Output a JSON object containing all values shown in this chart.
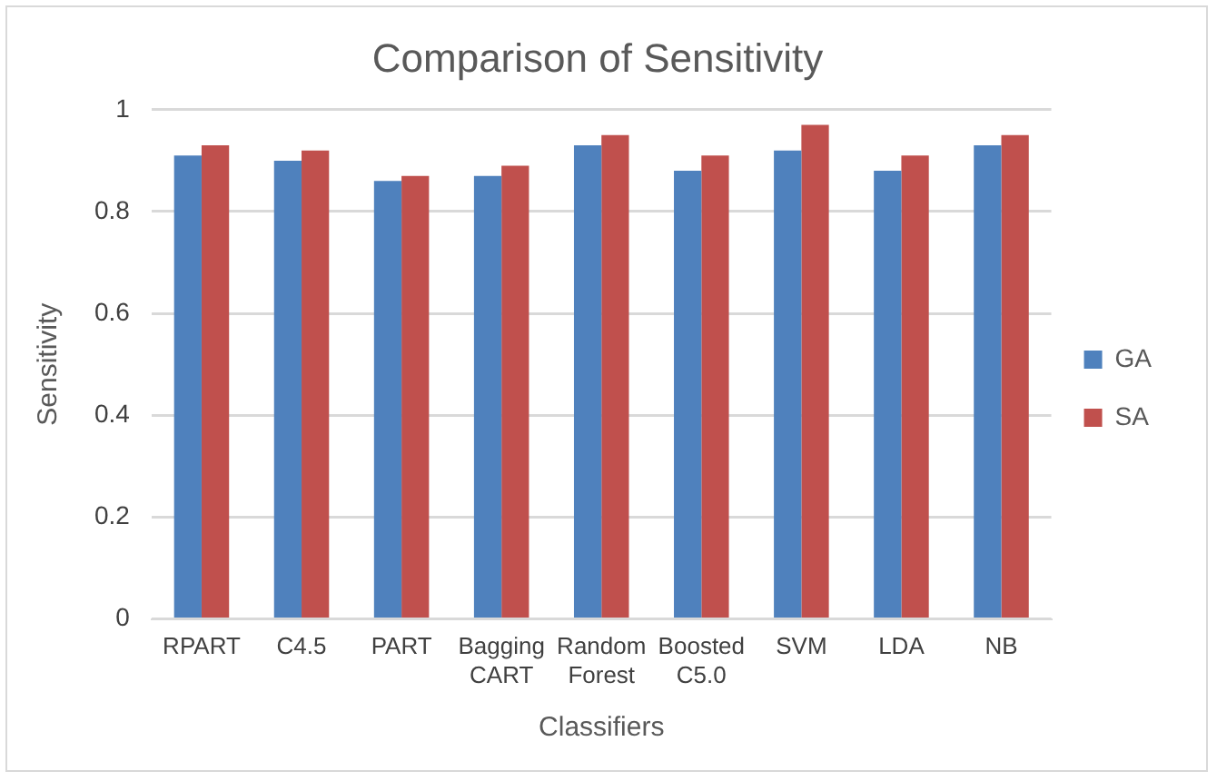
{
  "chart_data": {
    "type": "bar",
    "title": "Comparison of Sensitivity",
    "xlabel": "Classifiers",
    "ylabel": "Sensitivity",
    "categories": [
      "RPART",
      "C4.5",
      "PART",
      "Bagging CART",
      "Random Forest",
      "Boosted C5.0",
      "SVM",
      "LDA",
      "NB"
    ],
    "series": [
      {
        "name": "GA",
        "color": "#4f81bd",
        "values": [
          0.91,
          0.9,
          0.86,
          0.87,
          0.93,
          0.88,
          0.92,
          0.88,
          0.93
        ]
      },
      {
        "name": "SA",
        "color": "#c0504d",
        "values": [
          0.93,
          0.92,
          0.87,
          0.89,
          0.95,
          0.91,
          0.97,
          0.91,
          0.95
        ]
      }
    ],
    "ylim": [
      0,
      1
    ],
    "yticks": [
      0,
      0.2,
      0.4,
      0.6,
      0.8,
      1
    ],
    "grid": "y",
    "legend": "right"
  }
}
